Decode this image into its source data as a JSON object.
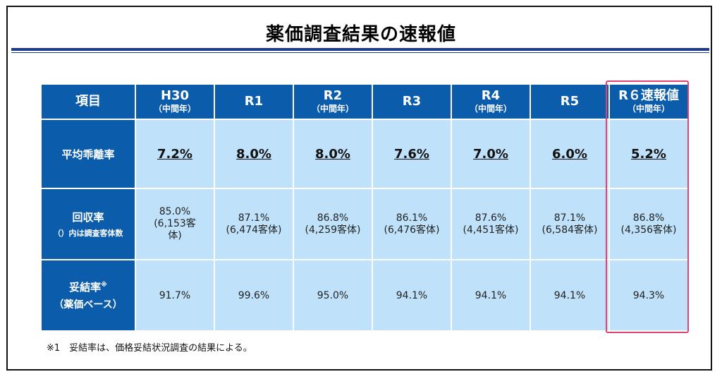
{
  "title": "薬価調査結果の速報値",
  "table": {
    "corner_label": "項目",
    "columns": [
      {
        "main": "H30",
        "sub": "（中間年）"
      },
      {
        "main": "R1",
        "sub": ""
      },
      {
        "main": "R2",
        "sub": "（中間年）"
      },
      {
        "main": "R3",
        "sub": ""
      },
      {
        "main": "R4",
        "sub": "（中間年）"
      },
      {
        "main": "R5",
        "sub": ""
      },
      {
        "main": "R６速報値",
        "sub": "（中間年）"
      }
    ],
    "rows": {
      "deviation": {
        "label": "平均乖離率",
        "values": [
          "7.2%",
          "8.0%",
          "8.0%",
          "7.6%",
          "7.0%",
          "6.0%",
          "5.2%"
        ]
      },
      "recovery": {
        "label": "回収率",
        "sublabel": "（）内は調査客体数",
        "values": [
          [
            "85.0%",
            "(6,153客",
            "体)"
          ],
          [
            "87.1%",
            "(6,474客体)"
          ],
          [
            "86.8%",
            "(4,259客体)"
          ],
          [
            "86.1%",
            "(6,476客体)"
          ],
          [
            "87.6%",
            "(4,451客体)"
          ],
          [
            "87.1%",
            "(6,584客体)"
          ],
          [
            "86.8%",
            "(4,356客体)"
          ]
        ]
      },
      "settlement": {
        "label": "妥結率",
        "label_mark": "※",
        "sublabel": "（薬価ベース）",
        "values": [
          "91.7%",
          "99.6%",
          "95.0%",
          "94.1%",
          "94.1%",
          "94.1%",
          "94.3%"
        ]
      }
    }
  },
  "footnote": "※1　妥結率は、価格妥結状況調査の結果による。",
  "colors": {
    "header_blue": "#0b5cab",
    "cell_blue": "#bfe2fa",
    "highlight_red": "#e0436f",
    "rule_blue": "#1f3a8a"
  }
}
